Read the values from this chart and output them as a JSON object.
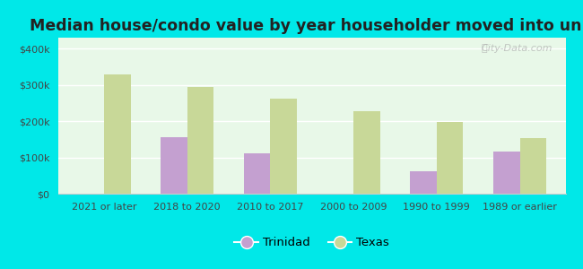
{
  "title": "Median house/condo value by year householder moved into unit",
  "categories": [
    "2021 or later",
    "2018 to 2020",
    "2010 to 2017",
    "2000 to 2009",
    "1990 to 1999",
    "1989 or earlier"
  ],
  "trinidad_values": [
    null,
    155000,
    110000,
    null,
    62000,
    117000
  ],
  "texas_values": [
    328000,
    295000,
    262000,
    228000,
    198000,
    152000
  ],
  "trinidad_color": "#c4a0d0",
  "texas_color": "#c8d898",
  "background_color": "#e8f8e8",
  "outer_background": "#00e8e8",
  "ylabel_ticks": [
    0,
    100000,
    200000,
    300000,
    400000
  ],
  "ylabel_labels": [
    "$0",
    "$100k",
    "$200k",
    "$300k",
    "$400k"
  ],
  "ylim": [
    0,
    430000
  ],
  "bar_width": 0.32,
  "watermark": "City-Data.com",
  "legend_trinidad": "Trinidad",
  "legend_texas": "Texas",
  "title_fontsize": 12.5,
  "tick_fontsize": 8,
  "legend_fontsize": 9.5
}
